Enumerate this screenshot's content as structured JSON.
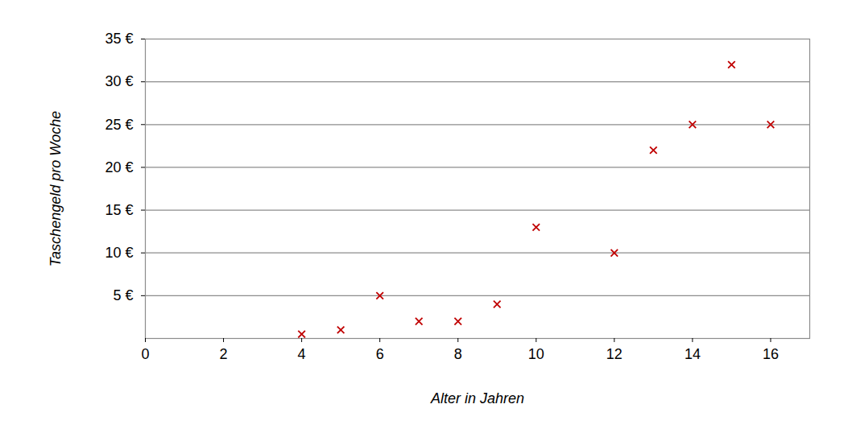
{
  "chart_data": {
    "type": "scatter",
    "x_label": "Alter in Jahren",
    "y_label": "Taschengeld pro Woche",
    "x": [
      4,
      5,
      6,
      7,
      8,
      9,
      10,
      12,
      13,
      14,
      15,
      16
    ],
    "values": [
      0.5,
      1,
      5,
      2,
      2,
      4,
      13,
      10,
      22,
      25,
      32,
      25
    ],
    "color": "#c00000",
    "marker": "x",
    "xlim": [
      0,
      17
    ],
    "xticks": [
      0,
      2,
      4,
      6,
      8,
      10,
      12,
      14,
      16
    ],
    "ylim": [
      0,
      35
    ],
    "yticks": [
      {
        "value": 5,
        "label": "5 €"
      },
      {
        "value": 10,
        "label": "10 €"
      },
      {
        "value": 15,
        "label": "15 €"
      },
      {
        "value": 20,
        "label": "20 €"
      },
      {
        "value": 25,
        "label": "25 €"
      },
      {
        "value": 30,
        "label": "30 €"
      },
      {
        "value": 35,
        "label": "35 €"
      }
    ],
    "grid": true
  }
}
